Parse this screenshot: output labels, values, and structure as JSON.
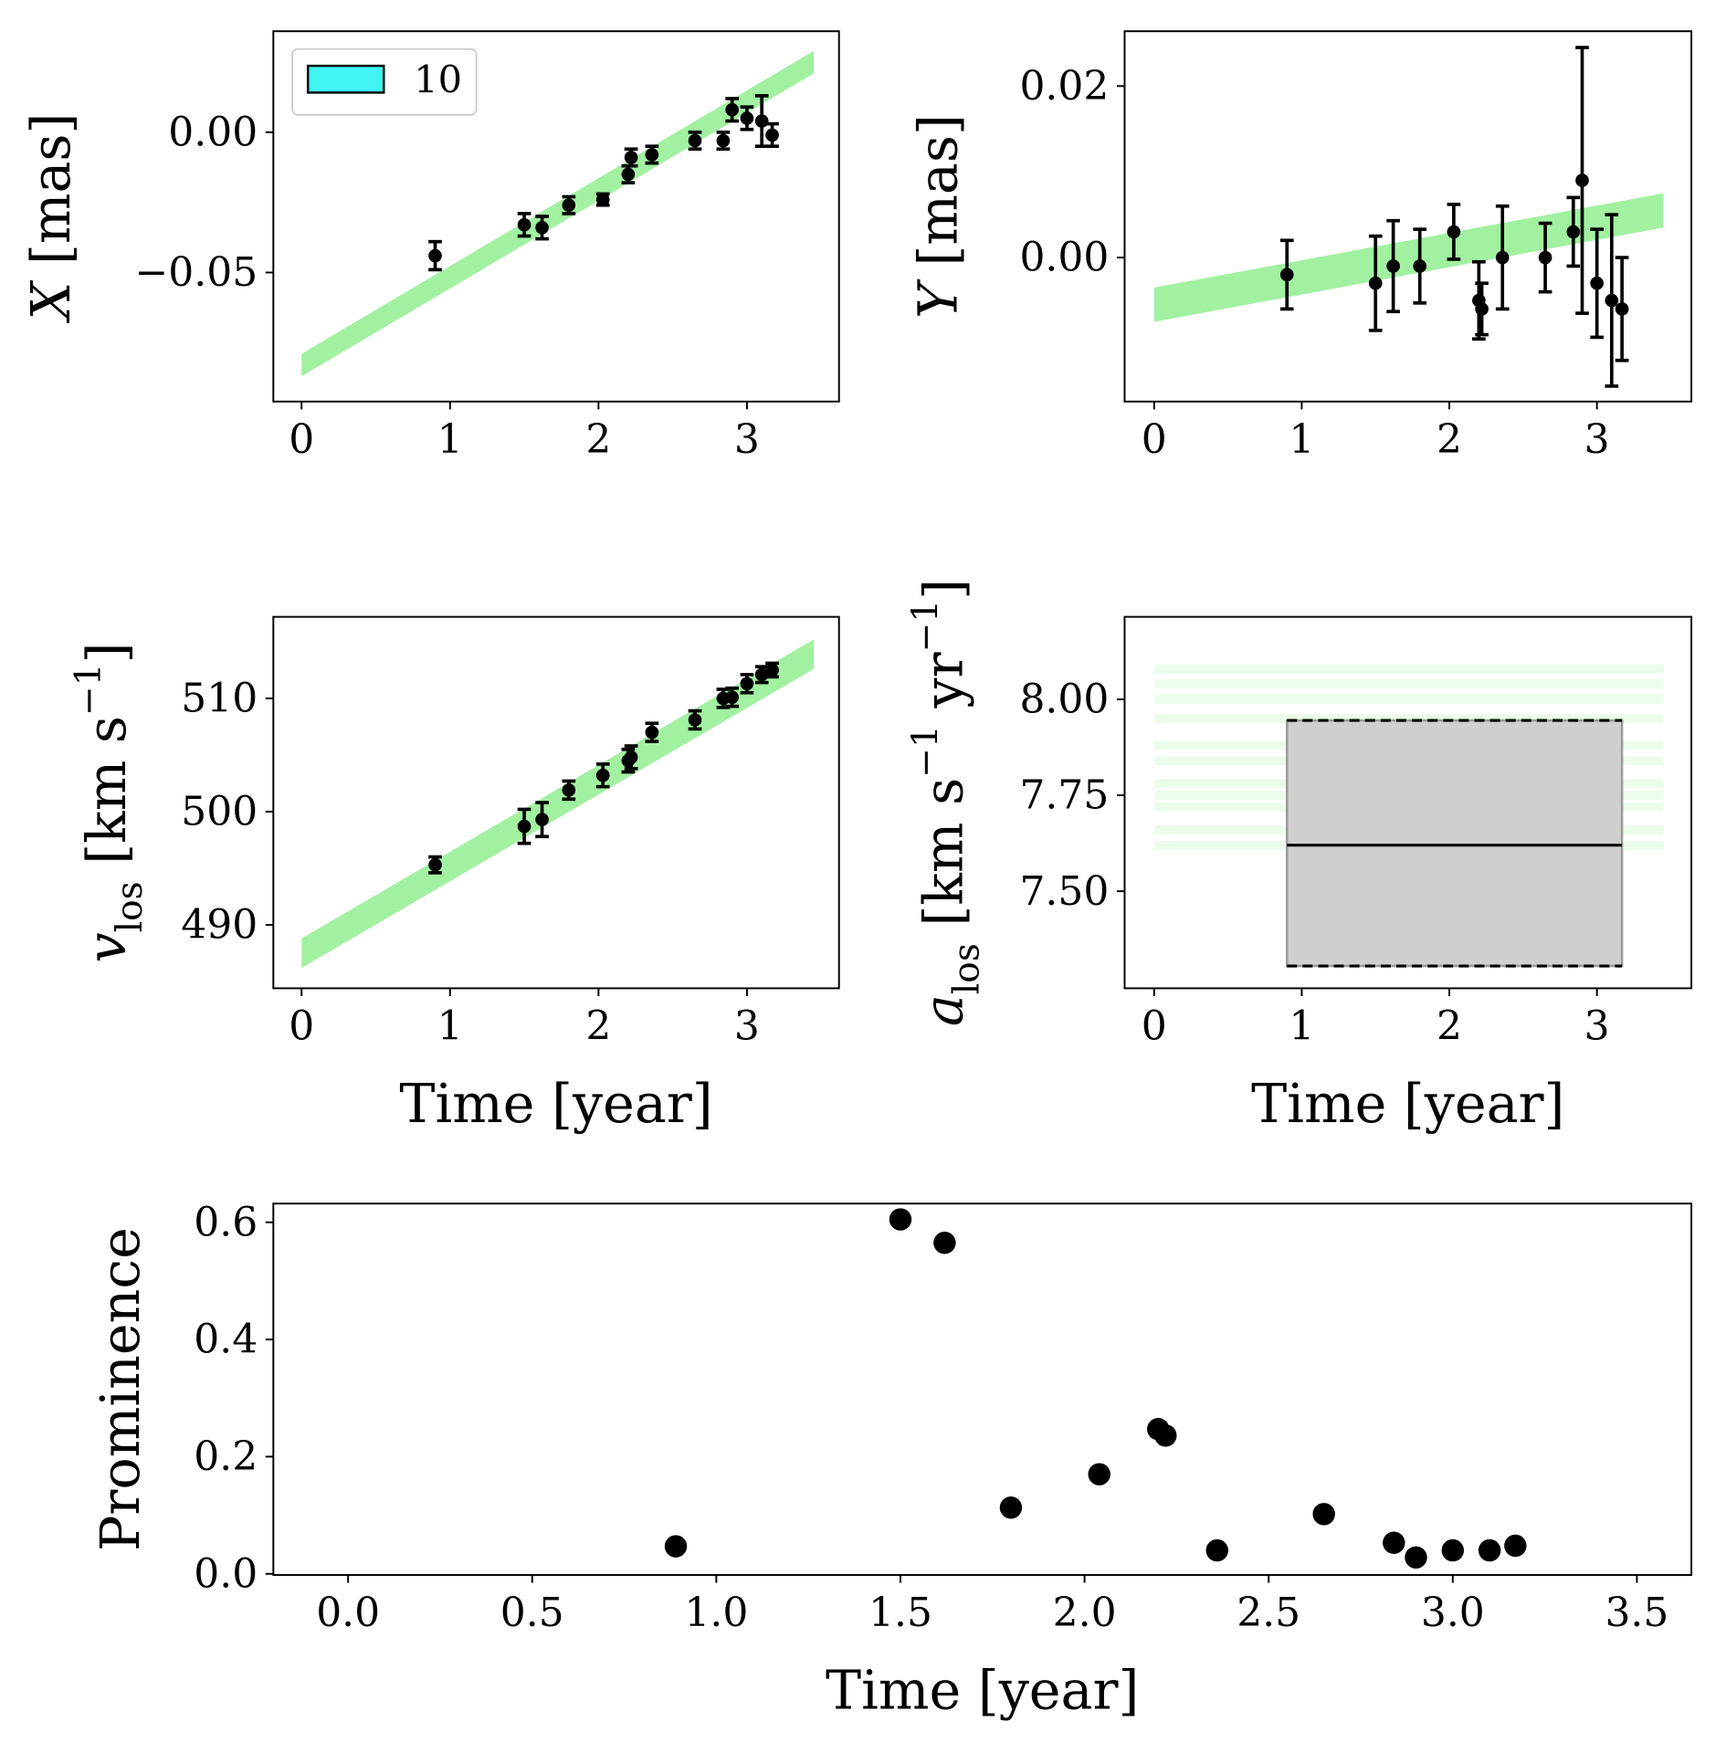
{
  "chart_data": [
    {
      "type": "errorbar",
      "ylabel": [
        {
          "text": "X",
          "style": "italic"
        },
        {
          "text": " [mas]",
          "style": "normal"
        }
      ],
      "x": [
        0.9,
        1.5,
        1.62,
        1.8,
        2.03,
        2.2,
        2.22,
        2.36,
        2.65,
        2.84,
        2.9,
        3.0,
        3.1,
        3.17
      ],
      "values": [
        -0.044,
        -0.033,
        -0.034,
        -0.026,
        -0.024,
        -0.015,
        -0.009,
        -0.008,
        -0.003,
        -0.003,
        0.008,
        0.005,
        0.004,
        -0.001
      ],
      "errors": [
        0.005,
        0.004,
        0.004,
        0.003,
        0.002,
        0.003,
        0.003,
        0.003,
        0.003,
        0.003,
        0.004,
        0.004,
        0.009,
        0.004
      ],
      "color": "#000000",
      "model": {
        "x": [
          0,
          3.45
        ],
        "lower": [
          -0.087,
          0.021
        ],
        "upper": [
          -0.079,
          0.029
        ],
        "color": "#90ee90"
      },
      "legend": {
        "label": "10",
        "color": "#40f4f4",
        "corner": "upper left"
      },
      "xlim": [
        -0.19,
        3.62
      ],
      "xticks": [
        0,
        1,
        2,
        3
      ],
      "ylim": [
        -0.096,
        0.036
      ],
      "yticks": [
        {
          "value": 0,
          "label": "0.00"
        },
        {
          "value": -0.05,
          "label": "−0.05"
        }
      ]
    },
    {
      "type": "errorbar",
      "ylabel": [
        {
          "text": "Y",
          "style": "italic"
        },
        {
          "text": " [mas]",
          "style": "normal"
        }
      ],
      "x": [
        0.9,
        1.5,
        1.62,
        1.8,
        2.03,
        2.2,
        2.22,
        2.36,
        2.65,
        2.84,
        2.9,
        3.0,
        3.1,
        3.17
      ],
      "values": [
        -0.002,
        -0.003,
        -0.001,
        -0.001,
        0.003,
        -0.005,
        -0.006,
        0.0,
        0.0,
        0.003,
        0.009,
        -0.003,
        -0.005,
        -0.006
      ],
      "errors": [
        0.004,
        0.0055,
        0.0053,
        0.0043,
        0.0032,
        0.0045,
        0.003,
        0.006,
        0.004,
        0.004,
        0.0155,
        0.0063,
        0.01,
        0.006
      ],
      "color": "#000000",
      "model": {
        "x": [
          0,
          3.45
        ],
        "lower": [
          -0.0075,
          0.0035
        ],
        "upper": [
          -0.0035,
          0.0075
        ],
        "color": "#90ee90"
      },
      "xlim": [
        -0.2,
        3.64
      ],
      "xticks": [
        0,
        1,
        2,
        3
      ],
      "ylim": [
        -0.0168,
        0.0264
      ],
      "yticks": [
        {
          "value": 0,
          "label": "0.00"
        },
        0.02
      ]
    },
    {
      "type": "errorbar",
      "ylabel": [
        {
          "text": "v",
          "style": "italic"
        },
        {
          "text": "los",
          "style": "sub"
        },
        {
          "text": " [km s",
          "style": "normal"
        },
        {
          "text": "−1",
          "style": "sup"
        },
        {
          "text": "]",
          "style": "normal"
        }
      ],
      "xlabel": "Time [year]",
      "x": [
        0.9,
        1.5,
        1.62,
        1.8,
        2.03,
        2.2,
        2.22,
        2.36,
        2.65,
        2.84,
        2.9,
        3.0,
        3.1,
        3.17
      ],
      "values": [
        495.3,
        498.7,
        499.3,
        501.9,
        503.2,
        504.5,
        504.8,
        507.0,
        508.1,
        510.0,
        510.1,
        511.3,
        512.1,
        512.5
      ],
      "errors": [
        0.7,
        1.5,
        1.5,
        0.8,
        1.0,
        1.0,
        1.0,
        0.8,
        0.8,
        0.8,
        0.8,
        0.8,
        0.7,
        0.6
      ],
      "color": "#000000",
      "model": {
        "x": [
          0,
          3.45
        ],
        "lower": [
          486.2,
          512.6
        ],
        "upper": [
          488.8,
          515.2
        ],
        "color": "#90ee90"
      },
      "xlim": [
        -0.19,
        3.62
      ],
      "xticks": [
        0,
        1,
        2,
        3
      ],
      "ylim": [
        484.4,
        517.2
      ],
      "yticks": [
        490,
        500,
        510
      ]
    },
    {
      "type": "box",
      "ylabel": [
        {
          "text": "a",
          "style": "italic"
        },
        {
          "text": "los",
          "style": "sub"
        },
        {
          "text": " [km s",
          "style": "normal"
        },
        {
          "text": "−1",
          "style": "sup"
        },
        {
          "text": " yr",
          "style": "normal"
        },
        {
          "text": "−1",
          "style": "sup"
        },
        {
          "text": "]",
          "style": "normal"
        }
      ],
      "xlabel": "Time [year]",
      "box": {
        "x": [
          0.9,
          3.17
        ],
        "low": 7.305,
        "high": 7.945,
        "median": 7.62,
        "color": "#cccccc"
      },
      "model": {
        "x": [
          0,
          3.45
        ],
        "levels": [
          7.62,
          7.66,
          7.72,
          7.75,
          7.78,
          7.84,
          7.88,
          7.95,
          8.0,
          8.04,
          8.08
        ],
        "color": "#90ee90"
      },
      "xlim": [
        -0.2,
        3.64
      ],
      "xticks": [
        0,
        1,
        2,
        3
      ],
      "ylim": [
        7.247,
        8.215
      ],
      "yticks": [
        {
          "value": 7.5,
          "label": "7.50"
        },
        7.75,
        {
          "value": 8,
          "label": "8.00"
        }
      ]
    },
    {
      "type": "scatter",
      "ylabel": [
        {
          "text": "Prominence",
          "style": "normal"
        }
      ],
      "xlabel": "Time [year]",
      "x": [
        0.89,
        1.5,
        1.62,
        1.8,
        2.04,
        2.2,
        2.22,
        2.36,
        2.65,
        2.84,
        2.9,
        3.0,
        3.1,
        3.17
      ],
      "values": [
        0.047,
        0.605,
        0.565,
        0.113,
        0.17,
        0.247,
        0.236,
        0.04,
        0.102,
        0.053,
        0.028,
        0.04,
        0.04,
        0.048
      ],
      "color": "#000000",
      "xlim": [
        -0.203,
        3.648
      ],
      "xticks": [
        {
          "value": 0,
          "label": "0.0"
        },
        0.5,
        {
          "value": 1,
          "label": "1.0"
        },
        1.5,
        {
          "value": 2,
          "label": "2.0"
        },
        2.5,
        {
          "value": 3,
          "label": "3.0"
        },
        3.5
      ],
      "ylim": [
        -0.002,
        0.632
      ],
      "yticks": [
        {
          "value": 0,
          "label": "0.0"
        },
        0.2,
        0.4,
        0.6
      ]
    }
  ]
}
